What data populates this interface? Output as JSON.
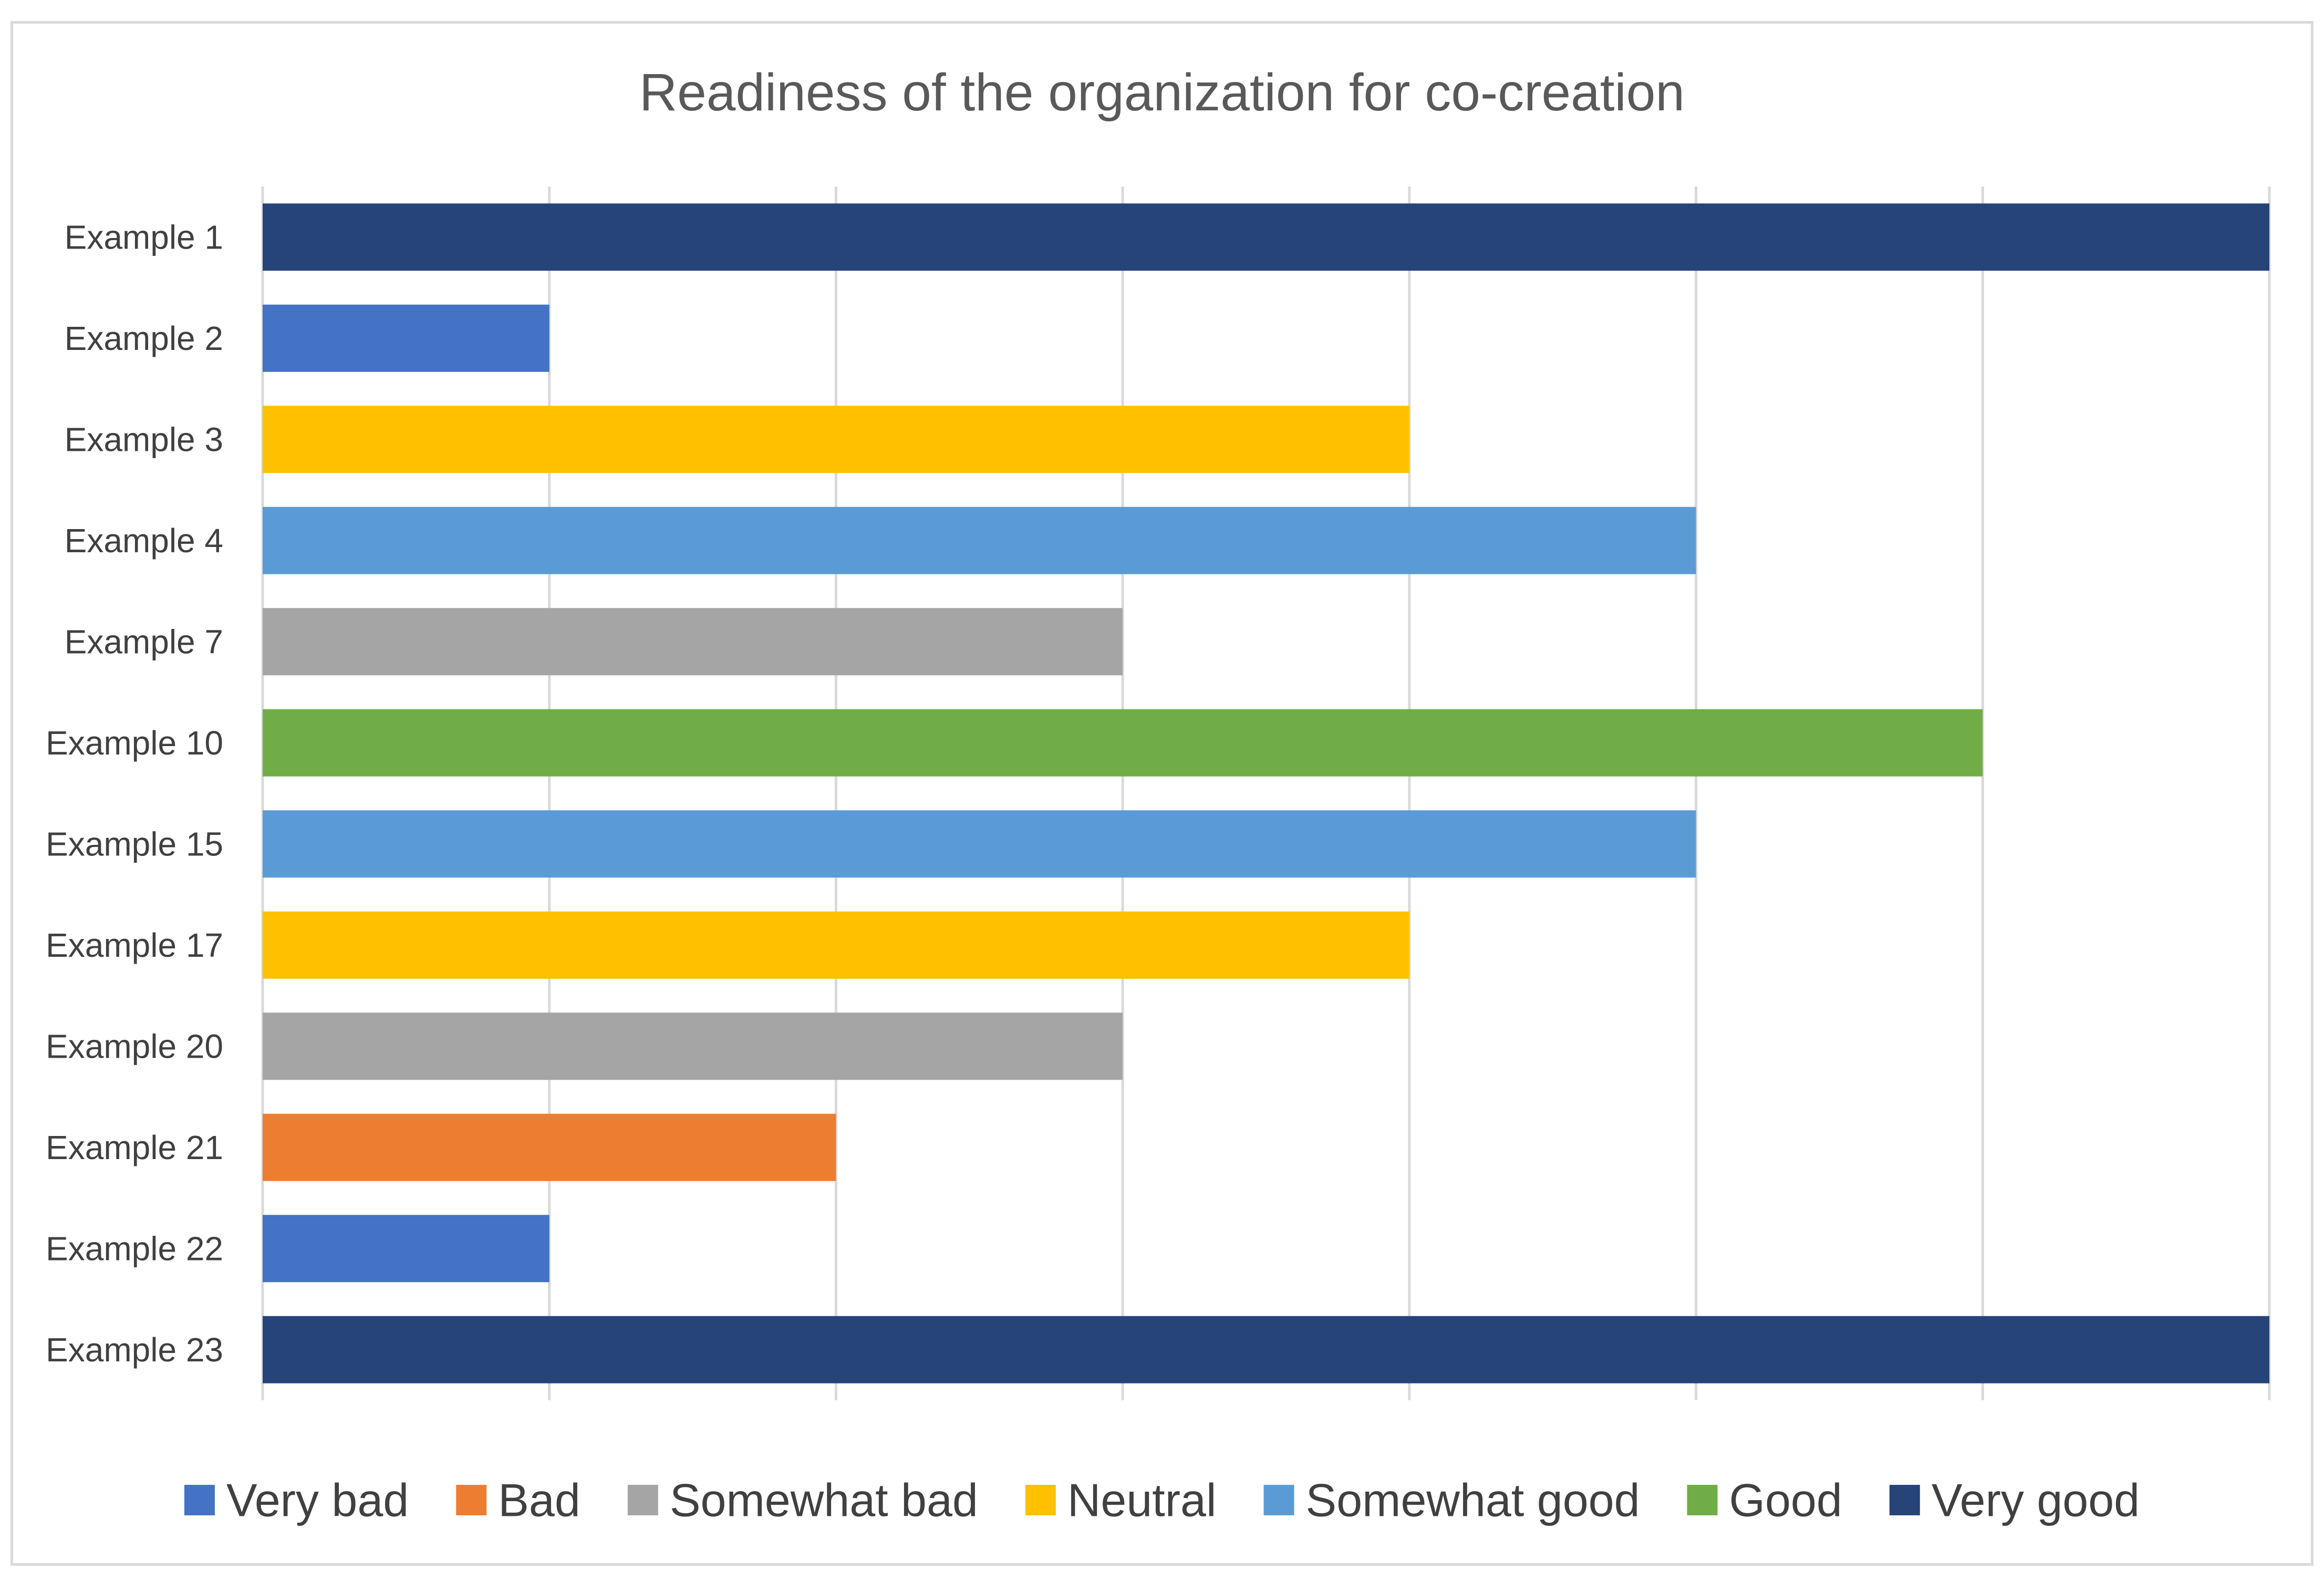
{
  "chart_data": {
    "type": "bar",
    "orientation": "horizontal",
    "title": "Readiness of the organization for co-creation",
    "xlabel": "",
    "ylabel": "",
    "xlim": [
      0,
      7
    ],
    "grid": true,
    "legend_position": "bottom",
    "scale_labels": [
      "Very bad",
      "Bad",
      "Somewhat bad",
      "Neutral",
      "Somewhat good",
      "Good",
      "Very good"
    ],
    "scale_colors": [
      "#4472c4",
      "#ed7d31",
      "#a5a5a5",
      "#ffc000",
      "#5b9bd5",
      "#70ad47",
      "#264478"
    ],
    "categories": [
      "Example 1",
      "Example 2",
      "Example 3",
      "Example 4",
      "Example 7",
      "Example 10",
      "Example 15",
      "Example 17",
      "Example 20",
      "Example 21",
      "Example 22",
      "Example 23"
    ],
    "values": [
      7,
      1,
      4,
      5,
      3,
      6,
      5,
      4,
      3,
      2,
      1,
      7
    ]
  }
}
